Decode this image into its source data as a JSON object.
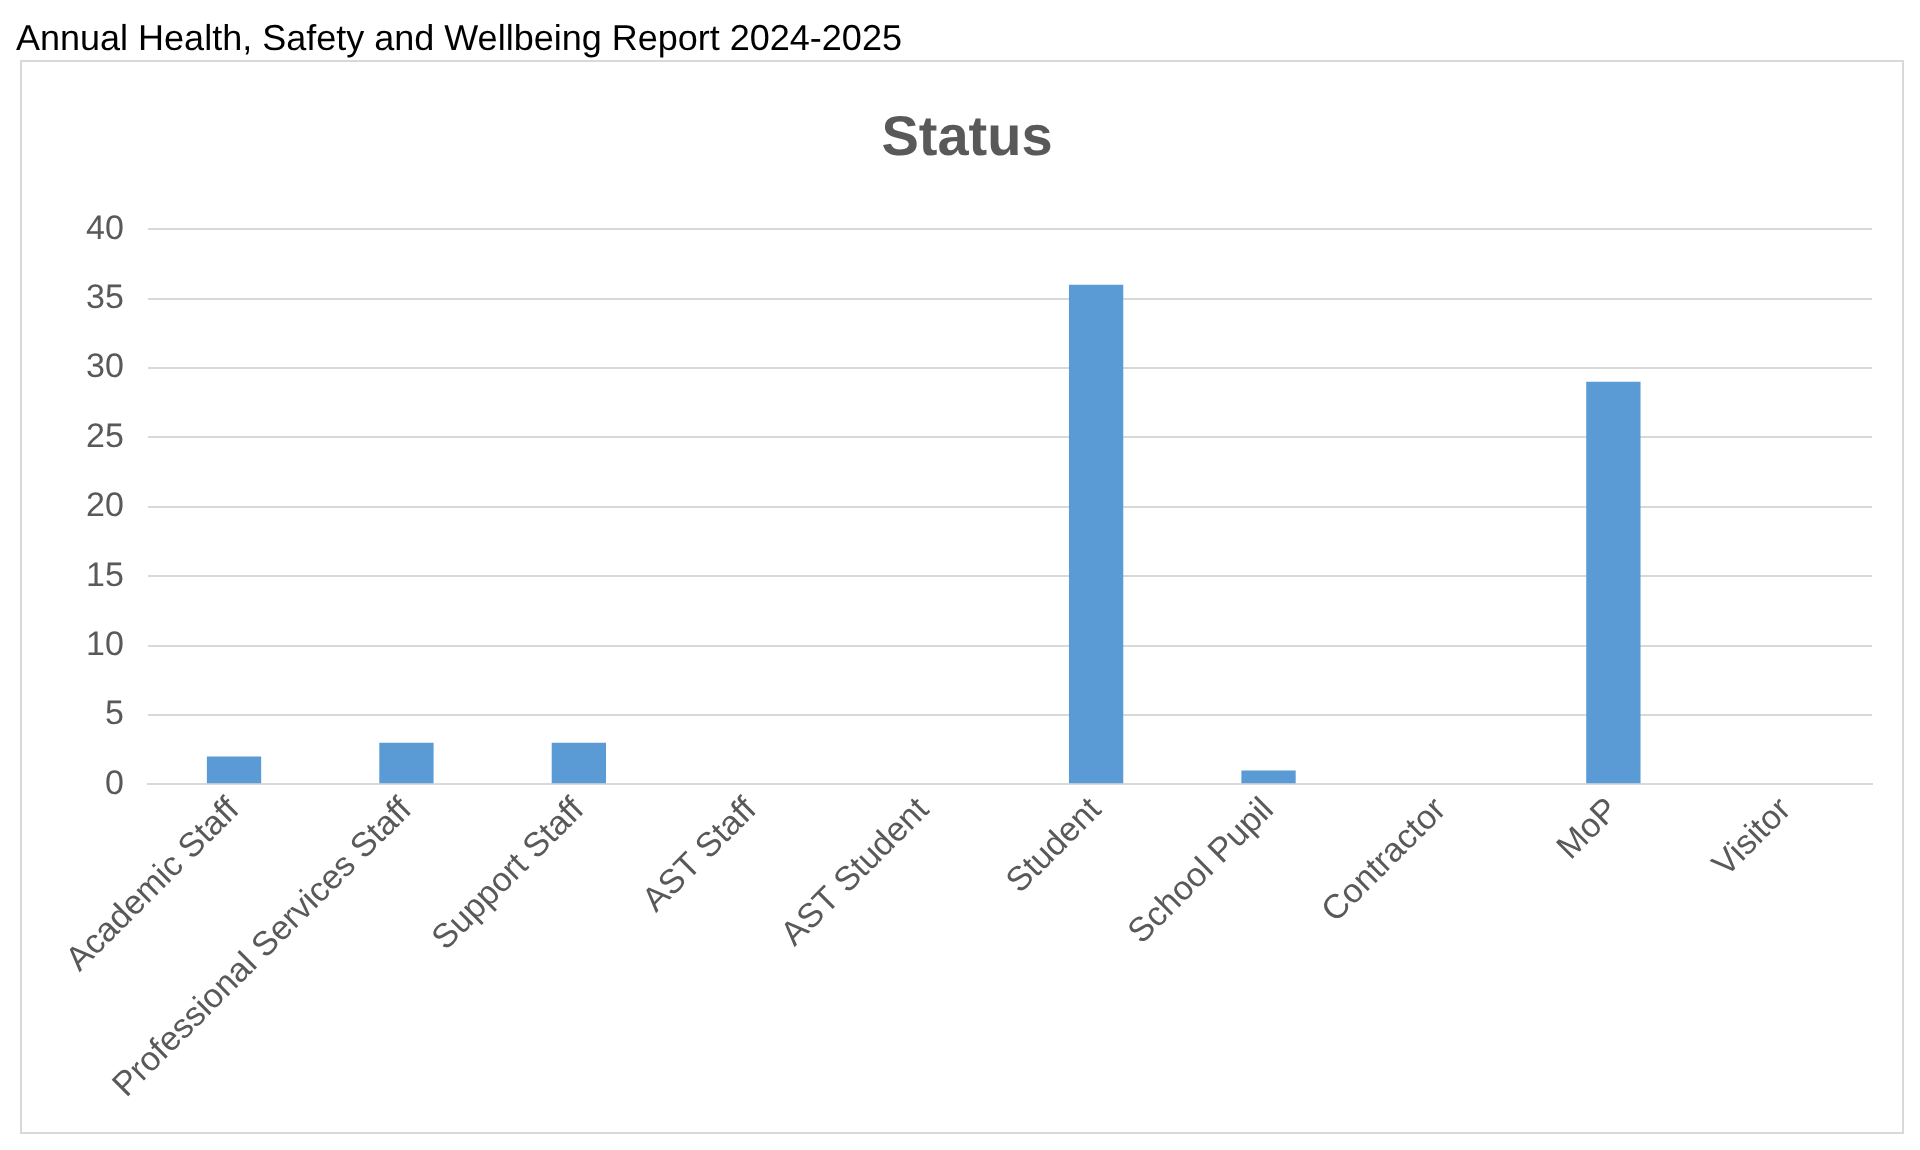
{
  "chart_data": {
    "type": "bar",
    "title": "Status",
    "annotations": [
      "Annual Health, Safety and Wellbeing Report 2024-2025"
    ],
    "categories": [
      "Academic Staff",
      "Professional Services Staff",
      "Support Staff",
      "AST Staff",
      "AST Student",
      "Student",
      "School Pupil",
      "Contractor",
      "MoP",
      "Visitor"
    ],
    "values": [
      2,
      3,
      3,
      0,
      0,
      36,
      1,
      0,
      29,
      0
    ],
    "color": "#5b9bd5",
    "ylim": [
      0,
      40
    ],
    "yticks": [
      0,
      5,
      10,
      15,
      20,
      25,
      30,
      35,
      40
    ],
    "grid": "y",
    "legend": false
  }
}
